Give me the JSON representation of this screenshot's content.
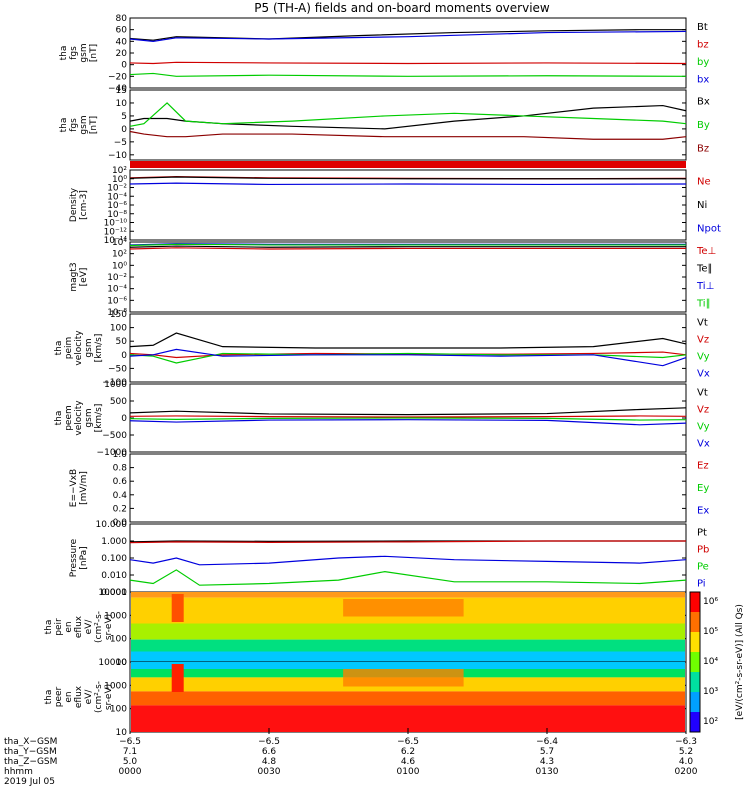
{
  "title": "P5 (TH-A) fields and on-board moments overview",
  "colors": {
    "black": "#000000",
    "red": "#d00000",
    "green": "#00cc00",
    "blue": "#0000dd",
    "darkred": "#8b0000",
    "frame": "#000000"
  },
  "chart_data": [
    {
      "type": "line",
      "panel": "fgs_gsm",
      "ylabel": [
        "tha",
        "fgs",
        "gsm",
        "[nT]"
      ],
      "ylim": [
        -40,
        80
      ],
      "yticks": [
        "80",
        "60",
        "40",
        "20",
        "0",
        "−20",
        "−40"
      ],
      "ytick_values": [
        80,
        60,
        40,
        20,
        0,
        -20,
        -40
      ],
      "series": [
        {
          "name": "Bt",
          "color": "#000000",
          "x": [
            0,
            5,
            10,
            15,
            30,
            50,
            70,
            90,
            110,
            120
          ],
          "y": [
            45,
            42,
            48,
            47,
            44,
            50,
            55,
            58,
            60,
            60
          ]
        },
        {
          "name": "bz",
          "color": "#d00000",
          "x": [
            0,
            5,
            10,
            30,
            60,
            90,
            120
          ],
          "y": [
            3,
            2,
            4,
            3,
            2,
            3,
            2
          ]
        },
        {
          "name": "by",
          "color": "#00cc00",
          "x": [
            0,
            5,
            10,
            30,
            60,
            90,
            120
          ],
          "y": [
            -17,
            -15,
            -20,
            -18,
            -20,
            -19,
            -20
          ]
        },
        {
          "name": "bx",
          "color": "#0000dd",
          "x": [
            0,
            5,
            10,
            30,
            60,
            90,
            120
          ],
          "y": [
            44,
            40,
            46,
            44,
            48,
            55,
            57
          ]
        }
      ]
    },
    {
      "type": "line",
      "panel": "fgs_gsm_detail",
      "ylabel": [
        "tha",
        "fgs",
        "gsm",
        "[nT]"
      ],
      "ylim": [
        -12,
        15
      ],
      "yticks": [
        "15",
        "10",
        "5",
        "0",
        "−5",
        "−10"
      ],
      "ytick_values": [
        15,
        10,
        5,
        0,
        -5,
        -10
      ],
      "series": [
        {
          "name": "Bx",
          "color": "#000000",
          "x": [
            0,
            3,
            8,
            12,
            20,
            35,
            55,
            70,
            85,
            100,
            115,
            120
          ],
          "y": [
            3,
            4,
            4,
            3,
            2,
            1,
            0,
            3,
            5,
            8,
            9,
            7
          ]
        },
        {
          "name": "By",
          "color": "#00cc00",
          "x": [
            0,
            3,
            8,
            12,
            20,
            35,
            55,
            70,
            85,
            100,
            115,
            120
          ],
          "y": [
            1,
            2,
            10,
            3,
            2,
            3,
            5,
            6,
            5,
            4,
            3,
            2
          ]
        },
        {
          "name": "Bz",
          "color": "#8b0000",
          "x": [
            0,
            3,
            8,
            12,
            20,
            35,
            55,
            70,
            85,
            100,
            115,
            120
          ],
          "y": [
            -1,
            -2,
            -3,
            -3,
            -2,
            -2,
            -3,
            -3,
            -3,
            -4,
            -4,
            -3
          ]
        }
      ]
    },
    {
      "type": "line",
      "panel": "density",
      "ylabel": [
        "Density",
        "[cm-3]"
      ],
      "yticks": [
        "10²",
        "10⁰",
        "10⁻²",
        "10⁻⁴",
        "10⁻⁶",
        "10⁻⁸",
        "10⁻¹⁰",
        "10⁻¹²",
        "10⁻¹⁴"
      ],
      "ylim_log10": [
        -14,
        2
      ],
      "series": [
        {
          "name": "Ne",
          "color": "#d00000",
          "x": [
            0,
            10,
            30,
            60,
            90,
            120
          ],
          "y_log10": [
            0.2,
            0.5,
            0.2,
            0.1,
            0.0,
            0.1
          ]
        },
        {
          "name": "Ni",
          "color": "#000000",
          "x": [
            0,
            10,
            30,
            60,
            90,
            120
          ],
          "y_log10": [
            0.1,
            0.4,
            0.1,
            0.0,
            0.0,
            0.0
          ]
        },
        {
          "name": "Npot",
          "color": "#0000dd",
          "x": [
            0,
            10,
            30,
            60,
            90,
            120
          ],
          "y_log10": [
            -1.2,
            -1.0,
            -1.3,
            -1.2,
            -1.3,
            -1.2
          ]
        }
      ]
    },
    {
      "type": "line",
      "panel": "temperature",
      "ylabel": [
        "magt3",
        "[eV]"
      ],
      "yticks": [
        "10⁴",
        "10²",
        "10⁰",
        "10⁻²",
        "10⁻⁴",
        "10⁻⁶",
        "10⁻⁸"
      ],
      "ylim_log10": [
        -8,
        4
      ],
      "series": [
        {
          "name": "Te⊥",
          "color": "#d00000",
          "x": [
            0,
            10,
            30,
            60,
            90,
            120
          ],
          "y_log10": [
            2.8,
            3.0,
            2.8,
            2.9,
            2.9,
            2.9
          ]
        },
        {
          "name": "Te∥",
          "color": "#000000",
          "x": [
            0,
            10,
            30,
            60,
            90,
            120
          ],
          "y_log10": [
            3.1,
            3.3,
            3.1,
            3.2,
            3.2,
            3.2
          ]
        },
        {
          "name": "Ti⊥",
          "color": "#0000dd",
          "x": [
            0,
            10,
            30,
            60,
            90,
            120
          ],
          "y_log10": [
            3.5,
            3.7,
            3.6,
            3.6,
            3.6,
            3.6
          ]
        },
        {
          "name": "Ti∥",
          "color": "#00cc00",
          "x": [
            0,
            10,
            30,
            60,
            90,
            120
          ],
          "y_log10": [
            3.4,
            3.6,
            3.5,
            3.5,
            3.5,
            3.5
          ]
        }
      ]
    },
    {
      "type": "line",
      "panel": "peim_velocity",
      "ylabel": [
        "tha",
        "peim",
        "velocity",
        "gsm",
        "[km/s]"
      ],
      "ylim": [
        -100,
        150
      ],
      "yticks": [
        "150",
        "100",
        "50",
        "0",
        "−50",
        "−100"
      ],
      "ytick_values": [
        150,
        100,
        50,
        0,
        -50,
        -100
      ],
      "series": [
        {
          "name": "Vt",
          "color": "#000000",
          "x": [
            0,
            5,
            10,
            20,
            40,
            60,
            80,
            100,
            115,
            120
          ],
          "y": [
            30,
            35,
            80,
            30,
            25,
            25,
            25,
            30,
            60,
            40
          ]
        },
        {
          "name": "Vz",
          "color": "#d00000",
          "x": [
            0,
            5,
            10,
            20,
            40,
            60,
            80,
            100,
            115,
            120
          ],
          "y": [
            5,
            0,
            -10,
            0,
            5,
            3,
            2,
            5,
            10,
            0
          ]
        },
        {
          "name": "Vy",
          "color": "#00cc00",
          "x": [
            0,
            5,
            10,
            20,
            40,
            60,
            80,
            100,
            115,
            120
          ],
          "y": [
            0,
            -5,
            -30,
            5,
            0,
            5,
            0,
            0,
            -10,
            0
          ]
        },
        {
          "name": "Vx",
          "color": "#0000dd",
          "x": [
            0,
            5,
            10,
            20,
            40,
            60,
            80,
            100,
            115,
            120
          ],
          "y": [
            -5,
            0,
            20,
            -5,
            0,
            0,
            -5,
            0,
            -40,
            -10
          ]
        }
      ]
    },
    {
      "type": "line",
      "panel": "peem_velocity",
      "ylabel": [
        "tha",
        "peem",
        "velocity",
        "gsm",
        "[km/s]"
      ],
      "ylim": [
        -1000,
        1000
      ],
      "yticks": [
        "1000",
        "500",
        "0",
        "−500",
        "−1000"
      ],
      "ytick_values": [
        1000,
        500,
        0,
        -500,
        -1000
      ],
      "series": [
        {
          "name": "Vt",
          "color": "#000000",
          "x": [
            0,
            10,
            30,
            60,
            90,
            110,
            120
          ],
          "y": [
            150,
            200,
            120,
            100,
            130,
            250,
            300
          ]
        },
        {
          "name": "Vz",
          "color": "#d00000",
          "x": [
            0,
            10,
            30,
            60,
            90,
            110,
            120
          ],
          "y": [
            50,
            60,
            40,
            30,
            40,
            60,
            50
          ]
        },
        {
          "name": "Vy",
          "color": "#00cc00",
          "x": [
            0,
            10,
            30,
            60,
            90,
            110,
            120
          ],
          "y": [
            -20,
            -40,
            -10,
            0,
            -10,
            -60,
            -50
          ]
        },
        {
          "name": "Vx",
          "color": "#0000dd",
          "x": [
            0,
            10,
            30,
            60,
            90,
            110,
            120
          ],
          "y": [
            -80,
            -120,
            -60,
            -50,
            -70,
            -200,
            -150
          ]
        }
      ]
    },
    {
      "type": "line",
      "panel": "efield",
      "ylabel": [
        "E=−VxB",
        "[mV/m]"
      ],
      "ylim": [
        0,
        1
      ],
      "yticks": [
        "1.0",
        "0.8",
        "0.6",
        "0.4",
        "0.2",
        "0.0"
      ],
      "ytick_values": [
        1.0,
        0.8,
        0.6,
        0.4,
        0.2,
        0.0
      ],
      "series": [
        {
          "name": "Ez",
          "color": "#d00000",
          "x": [],
          "y": []
        },
        {
          "name": "Ey",
          "color": "#00cc00",
          "x": [],
          "y": []
        },
        {
          "name": "Ex",
          "color": "#0000dd",
          "x": [],
          "y": []
        }
      ]
    },
    {
      "type": "line",
      "panel": "pressure",
      "ylabel": [
        "Pressure",
        "[nPa]"
      ],
      "yticks": [
        "10.000",
        "1.000",
        "0.100",
        "0.010",
        "0.001"
      ],
      "ylim_log10": [
        -3,
        1
      ],
      "series": [
        {
          "name": "Pt",
          "color": "#000000",
          "x": [
            0,
            10,
            30,
            60,
            90,
            120
          ],
          "y_log10": [
            -0.05,
            0.0,
            -0.02,
            0.0,
            0.0,
            0.0
          ]
        },
        {
          "name": "Pb",
          "color": "#d00000",
          "x": [
            0,
            10,
            30,
            60,
            90,
            120
          ],
          "y_log10": [
            -0.1,
            -0.05,
            -0.08,
            -0.05,
            0.0,
            0.0
          ]
        },
        {
          "name": "Pe",
          "color": "#00cc00",
          "x": [
            0,
            5,
            10,
            15,
            30,
            45,
            55,
            70,
            90,
            110,
            120
          ],
          "y_log10": [
            -2.3,
            -2.5,
            -1.7,
            -2.6,
            -2.5,
            -2.3,
            -1.8,
            -2.4,
            -2.4,
            -2.5,
            -2.3
          ]
        },
        {
          "name": "Pi",
          "color": "#0000dd",
          "x": [
            0,
            5,
            10,
            15,
            30,
            45,
            55,
            70,
            90,
            110,
            120
          ],
          "y_log10": [
            -1.1,
            -1.3,
            -1.0,
            -1.4,
            -1.3,
            -1.0,
            -0.9,
            -1.1,
            -1.2,
            -1.3,
            -1.1
          ]
        }
      ]
    },
    {
      "type": "heatmap",
      "panel": "peir_eflux",
      "ylabel": [
        "tha",
        "peir",
        "en",
        "eflux",
        "eV/",
        "(cm²-s-",
        "sr-eV)"
      ],
      "yticks": [
        "10000",
        "1000",
        "100",
        "10"
      ],
      "ylim_log10": [
        0.8,
        4.2
      ]
    },
    {
      "type": "heatmap",
      "panel": "peer_eflux",
      "ylabel": [
        "tha",
        "peer",
        "en",
        "eflux",
        "eV/",
        "(cm²-s-",
        "sr-eV)"
      ],
      "yticks": [
        "10000",
        "1000",
        "100",
        "10"
      ],
      "ylim_log10": [
        0.8,
        4.2
      ]
    }
  ],
  "colorbar": {
    "label": "[eV/(cm²-s-sr-eV)] (All Qs)",
    "ticks": [
      "10⁶",
      "10⁵",
      "10⁴",
      "10³",
      "10²"
    ]
  },
  "xaxis": {
    "rows": [
      {
        "label": "tha_X−GSM",
        "values": [
          "−6.5",
          "−6.5",
          "−6.5",
          "−6.4",
          "−6.3"
        ]
      },
      {
        "label": "tha_Y−GSM",
        "values": [
          "7.1",
          "6.6",
          "6.2",
          "5.7",
          "5.2"
        ]
      },
      {
        "label": "tha_Z−GSM",
        "values": [
          "5.0",
          "4.8",
          "4.6",
          "4.3",
          "4.0"
        ]
      },
      {
        "label": "hhmm",
        "values": [
          "0000",
          "0030",
          "0100",
          "0130",
          "0200"
        ]
      }
    ],
    "date": "2019 Jul 05"
  }
}
